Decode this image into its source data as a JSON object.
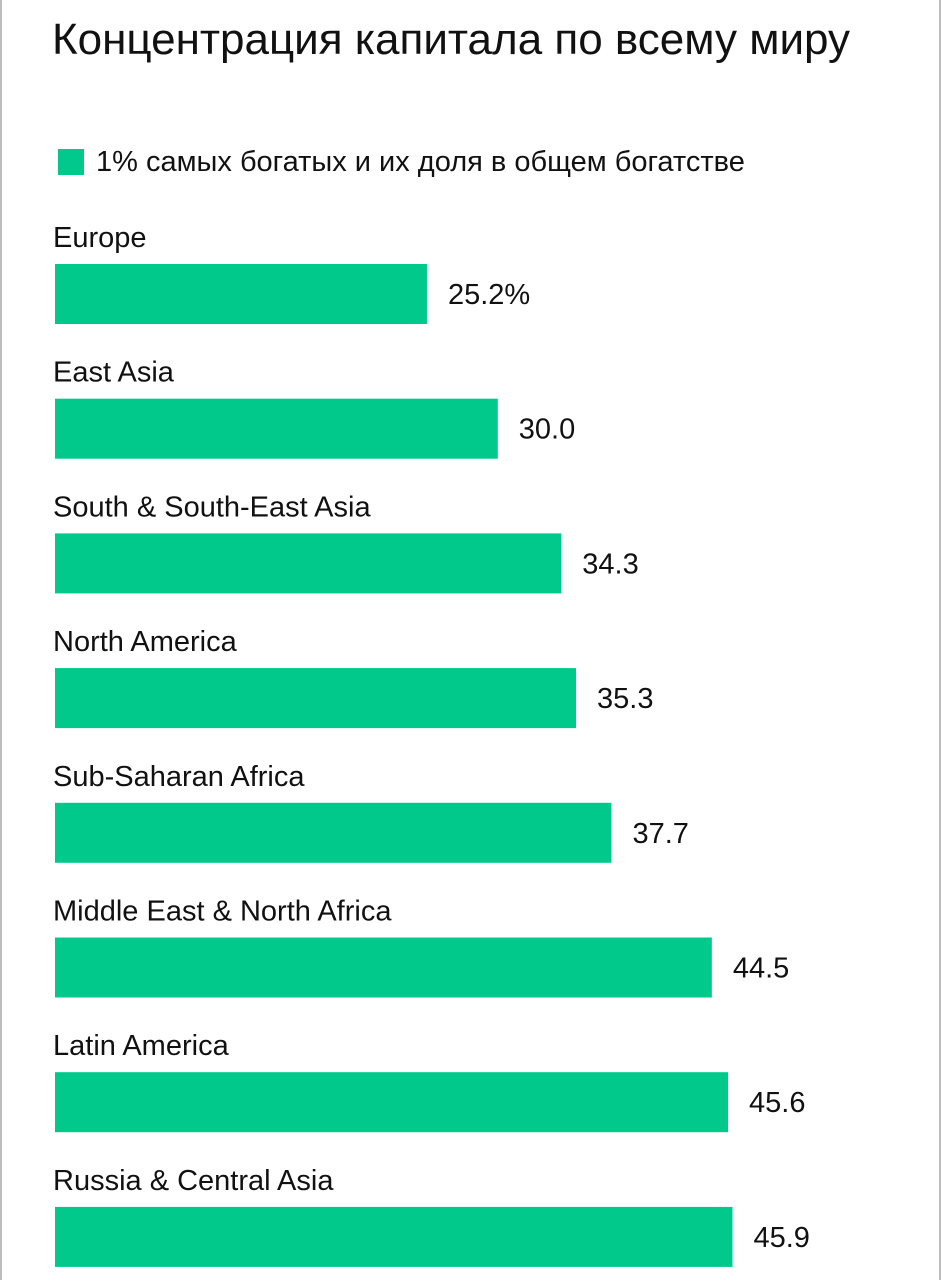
{
  "chart_data": {
    "type": "bar",
    "orientation": "horizontal",
    "title": "Концентрация капитала по всему миру",
    "legend": "1% самых богатых и их доля в общем богатстве",
    "categories": [
      "Europe",
      "East Asia",
      "South & South-East Asia",
      "North America",
      "Sub-Saharan Africa",
      "Middle East & North Africa",
      "Latin America",
      "Russia & Central Asia"
    ],
    "values": [
      25.2,
      30.0,
      34.3,
      35.3,
      37.7,
      44.5,
      45.6,
      45.9
    ],
    "value_labels": [
      "25.2%",
      "30.0",
      "34.3",
      "35.3",
      "37.7",
      "44.5",
      "45.6",
      "45.9"
    ],
    "bar_color": "#00c98b",
    "legend_placement": "top-left",
    "grid": false
  }
}
